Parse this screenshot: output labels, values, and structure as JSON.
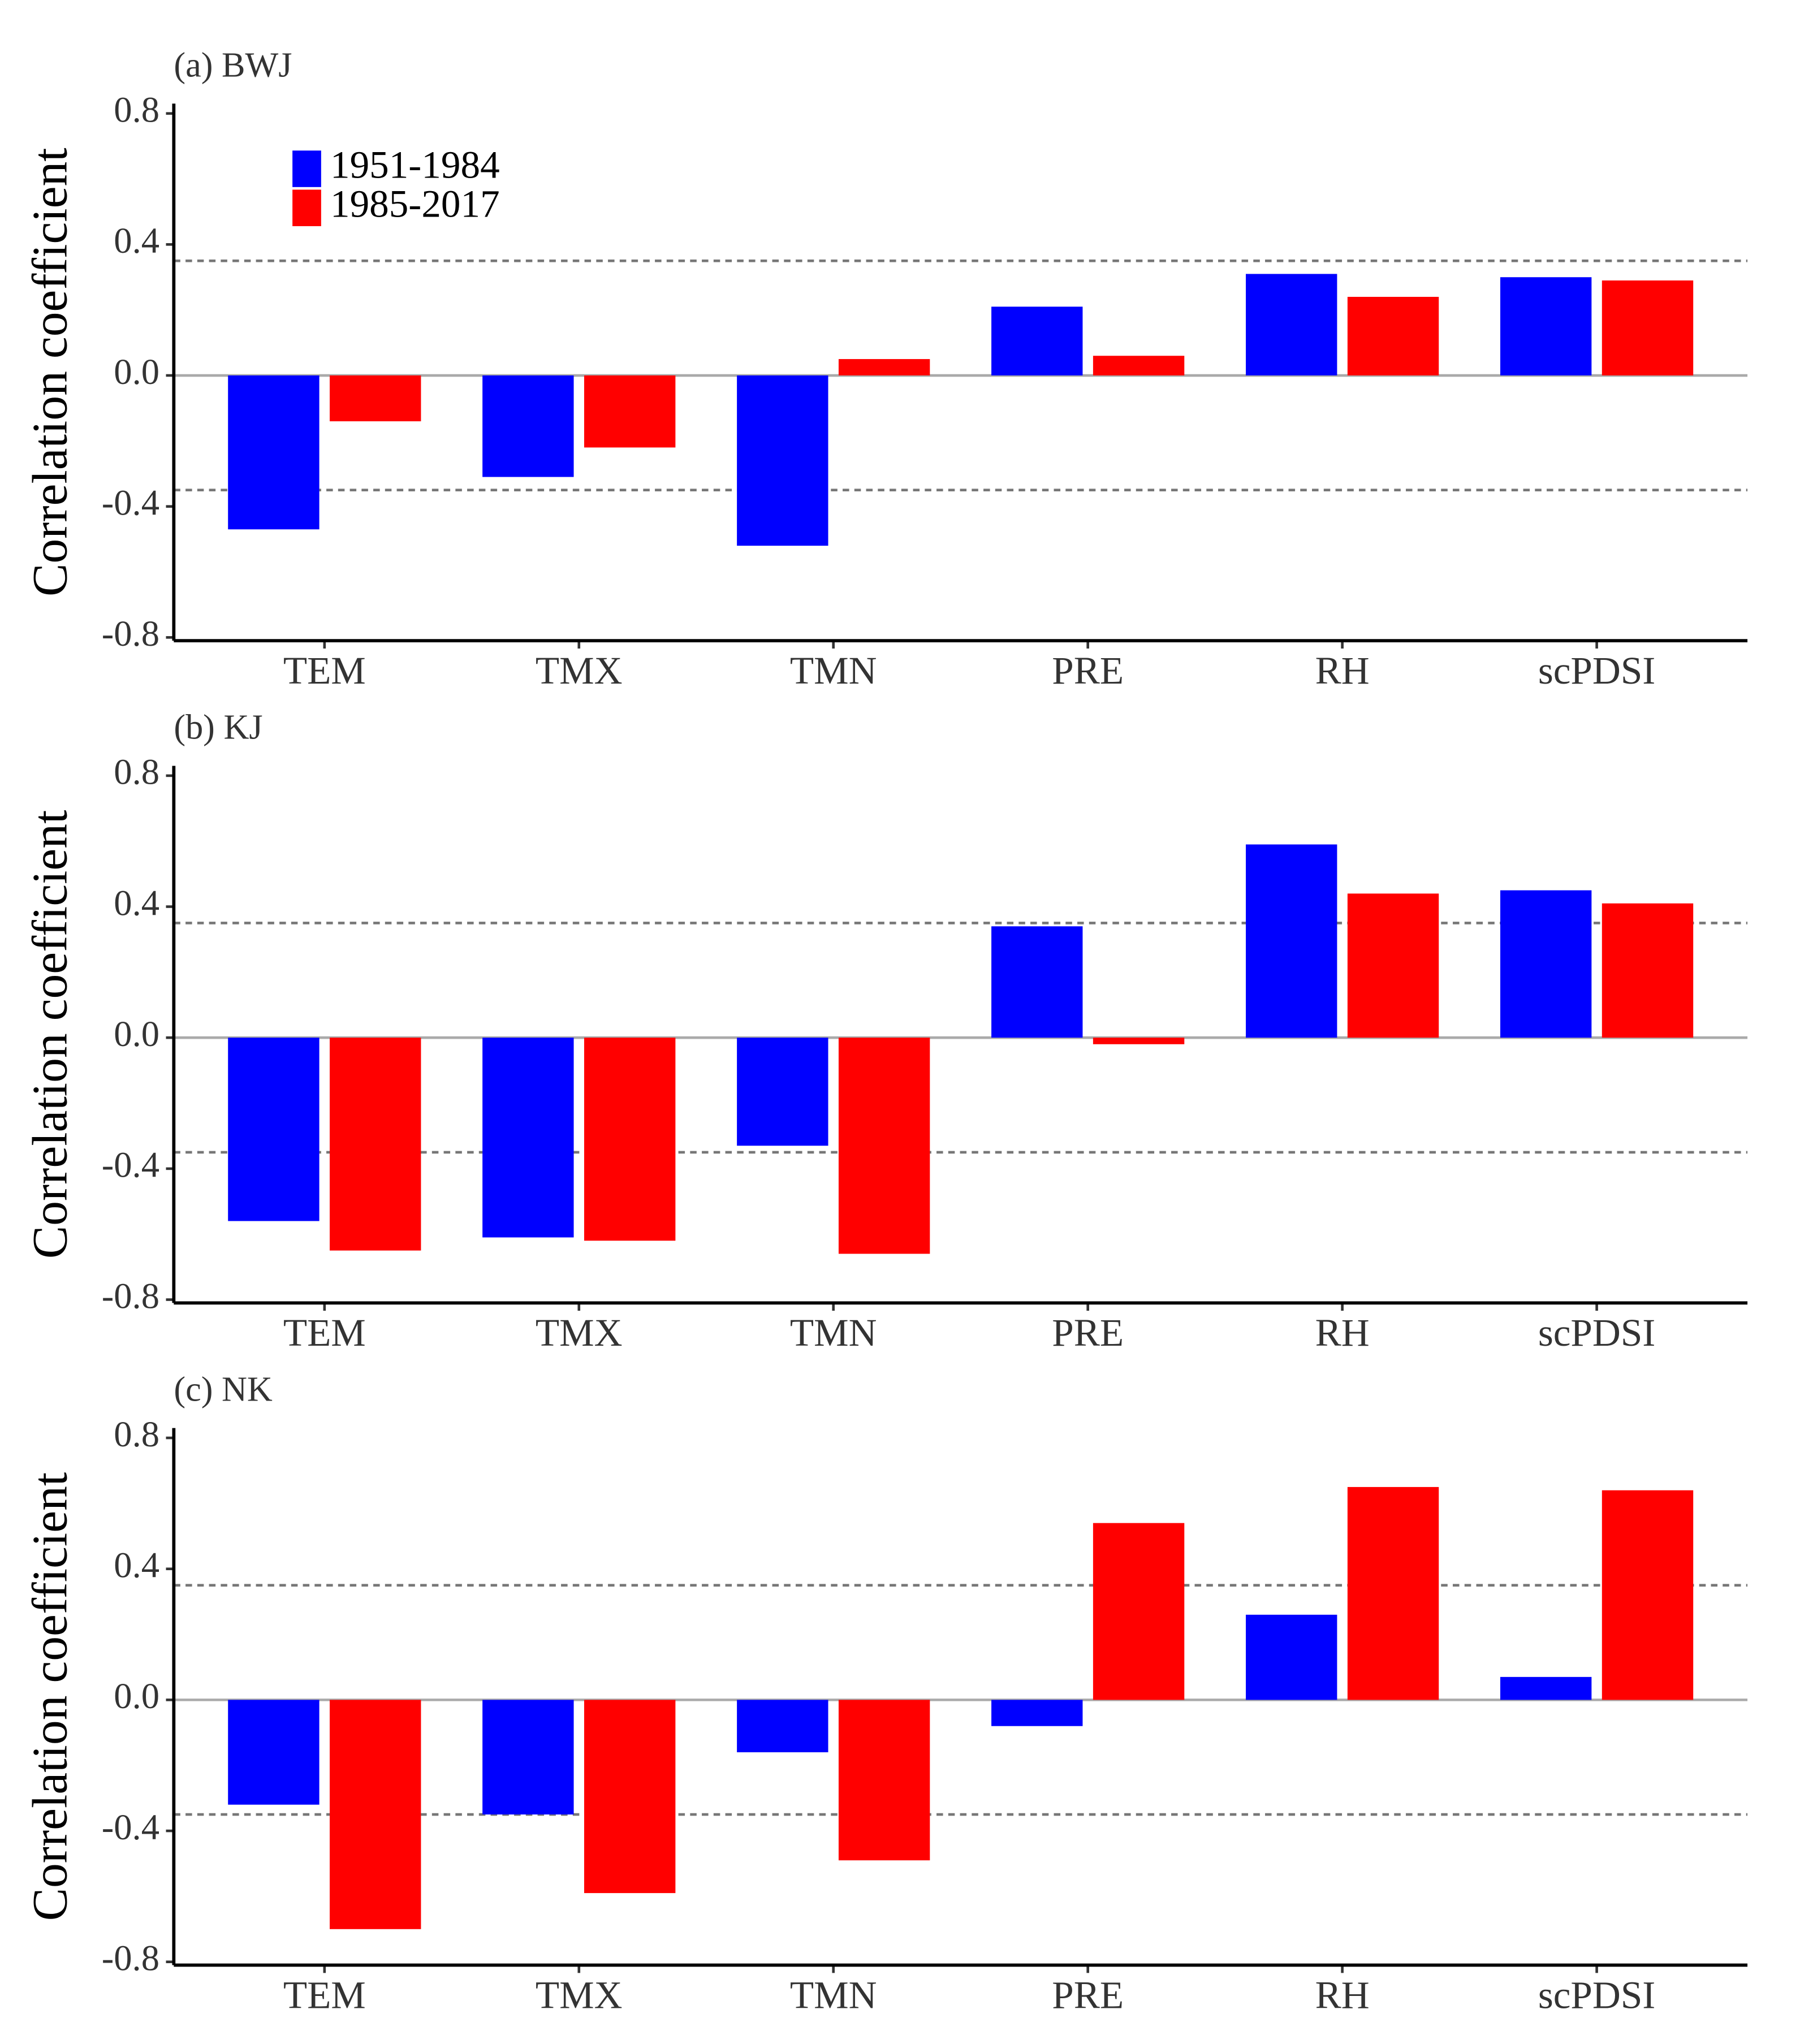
{
  "chart_data": [
    {
      "type": "bar",
      "title": "(a) BWJ",
      "ylabel": "Correlation coefficient",
      "categories": [
        "TEM",
        "TMX",
        "TMN",
        "PRE",
        "RH",
        "scPDSI"
      ],
      "series": [
        {
          "name": "1951-1984",
          "color": "#0000ff",
          "values": [
            -0.47,
            -0.31,
            -0.52,
            0.21,
            0.31,
            0.3
          ]
        },
        {
          "name": "1985-2017",
          "color": "#ff0000",
          "values": [
            -0.14,
            -0.22,
            0.05,
            0.06,
            0.24,
            0.29
          ]
        }
      ],
      "ylim": [
        -0.81,
        0.83
      ],
      "yticks": [
        -0.8,
        -0.4,
        {
          "value": 0,
          "label": "0.0"
        },
        0.4,
        0.8
      ],
      "hlines": [
        0.35,
        -0.35
      ],
      "legend": "top-left"
    },
    {
      "type": "bar",
      "title": "(b) KJ",
      "ylabel": "Correlation coefficient",
      "categories": [
        "TEM",
        "TMX",
        "TMN",
        "PRE",
        "RH",
        "scPDSI"
      ],
      "series": [
        {
          "name": "1951-1984",
          "color": "#0000ff",
          "values": [
            -0.56,
            -0.61,
            -0.33,
            0.34,
            0.59,
            0.45
          ]
        },
        {
          "name": "1985-2017",
          "color": "#ff0000",
          "values": [
            -0.65,
            -0.62,
            -0.66,
            -0.02,
            0.44,
            0.41
          ]
        }
      ],
      "ylim": [
        -0.81,
        0.83
      ],
      "yticks": [
        -0.8,
        -0.4,
        {
          "value": 0,
          "label": "0.0"
        },
        0.4,
        0.8
      ],
      "hlines": [
        0.35,
        -0.35
      ]
    },
    {
      "type": "bar",
      "title": "(c) NK",
      "ylabel": "Correlation coefficient",
      "categories": [
        "TEM",
        "TMX",
        "TMN",
        "PRE",
        "RH",
        "scPDSI"
      ],
      "series": [
        {
          "name": "1951-1984",
          "color": "#0000ff",
          "values": [
            -0.32,
            -0.35,
            -0.16,
            -0.08,
            0.26,
            0.07
          ]
        },
        {
          "name": "1985-2017",
          "color": "#ff0000",
          "values": [
            -0.7,
            -0.59,
            -0.49,
            0.54,
            0.65,
            0.64
          ]
        }
      ],
      "ylim": [
        -0.81,
        0.83
      ],
      "yticks": [
        -0.8,
        -0.4,
        {
          "value": 0,
          "label": "0.0"
        },
        0.4,
        0.8
      ],
      "hlines": [
        0.35,
        -0.35
      ]
    }
  ]
}
